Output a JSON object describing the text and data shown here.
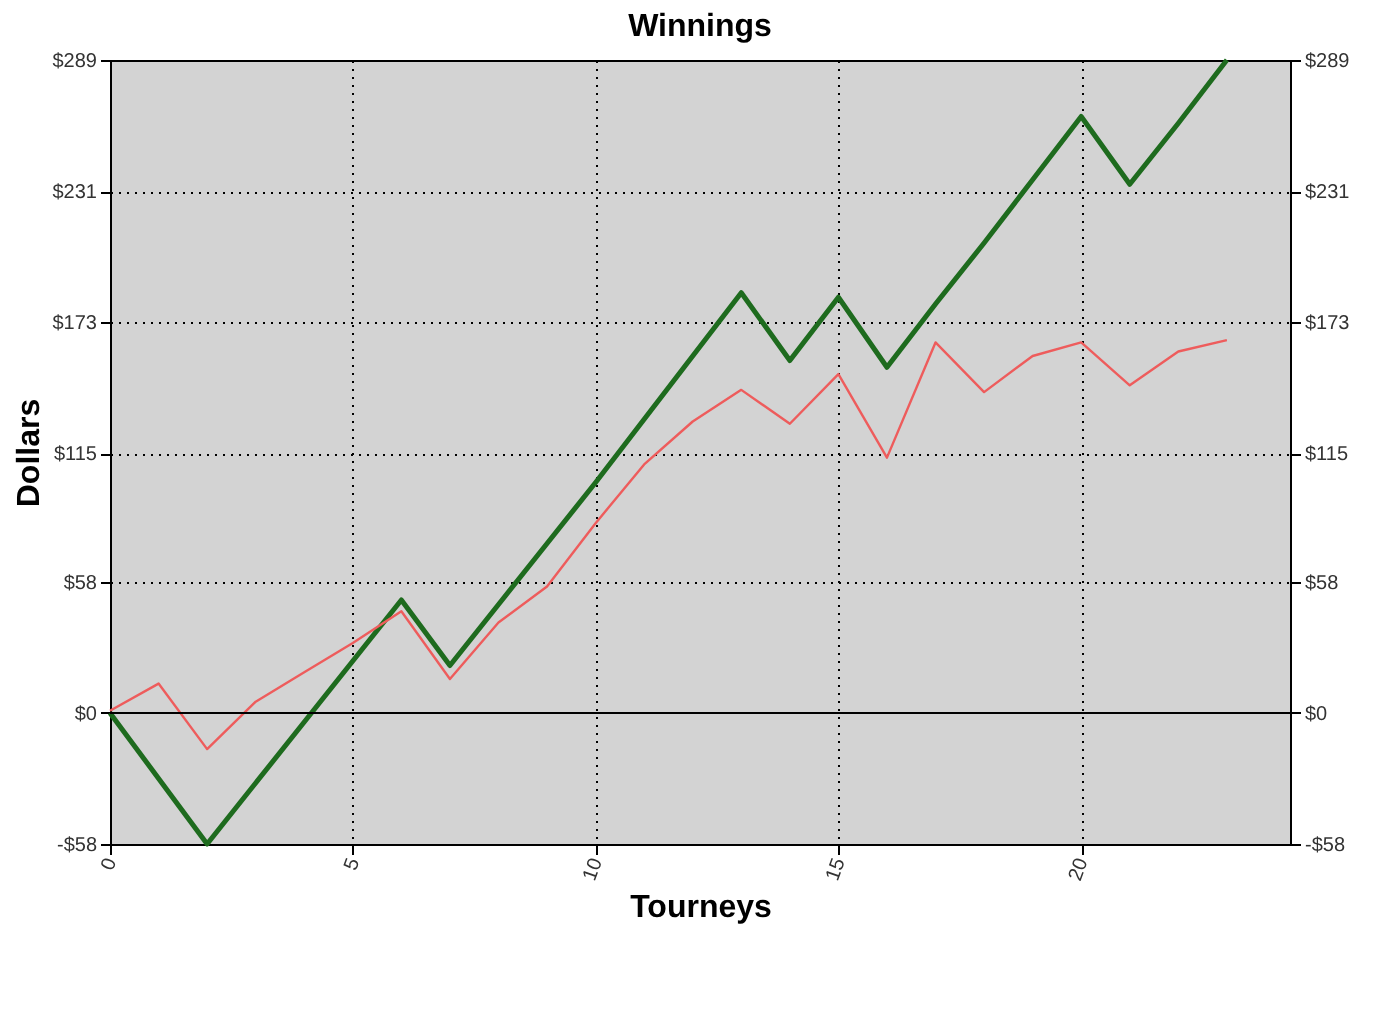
{
  "chart_data": {
    "type": "line",
    "title": "Winnings",
    "xlabel": "Tourneys",
    "ylabel": "Dollars",
    "x": [
      0,
      1,
      2,
      3,
      4,
      5,
      6,
      7,
      8,
      9,
      10,
      11,
      12,
      13,
      14,
      15,
      16,
      17,
      18,
      19,
      20,
      21,
      22,
      23
    ],
    "series": [
      {
        "color": "#1e6b1e",
        "values": [
          0,
          -29,
          -58,
          -31,
          -4,
          23,
          50,
          21,
          48,
          75,
          102,
          130,
          158,
          186,
          156,
          184,
          153,
          181,
          208,
          236,
          264,
          234,
          261,
          289
        ]
      },
      {
        "color": "#ee5c5c",
        "values": [
          1,
          13,
          -16,
          5,
          18,
          31,
          45,
          15,
          40,
          56,
          84,
          110,
          129,
          143,
          128,
          150,
          113,
          164,
          142,
          158,
          164,
          145,
          160,
          165
        ]
      }
    ],
    "xlim": [
      0,
      24.3
    ],
    "xticks": [
      0,
      5,
      10,
      15,
      20
    ],
    "ylim": [
      -58,
      289
    ],
    "yticks": [
      {
        "value": -58,
        "label": "-$58"
      },
      {
        "value": 0,
        "label": "$0"
      },
      {
        "value": 58,
        "label": "$58"
      },
      {
        "value": 115,
        "label": "$115"
      },
      {
        "value": 173,
        "label": "$173"
      },
      {
        "value": 231,
        "label": "$231"
      },
      {
        "value": 289,
        "label": "$289"
      }
    ],
    "y2lim": [
      -58,
      289
    ],
    "y2ticks": [
      {
        "value": -58,
        "label": "-$58"
      },
      {
        "value": 0,
        "label": "$0"
      },
      {
        "value": 58,
        "label": "$58"
      },
      {
        "value": 115,
        "label": "$115"
      },
      {
        "value": 173,
        "label": "$173"
      },
      {
        "value": 231,
        "label": "$231"
      },
      {
        "value": 289,
        "label": "$289"
      }
    ],
    "ref_lines": [
      {
        "axis": "y",
        "value": 0,
        "color": "#000000",
        "line_style": "solid"
      }
    ],
    "grid": true,
    "legend": false,
    "marker": "none",
    "line_style": "solid"
  }
}
